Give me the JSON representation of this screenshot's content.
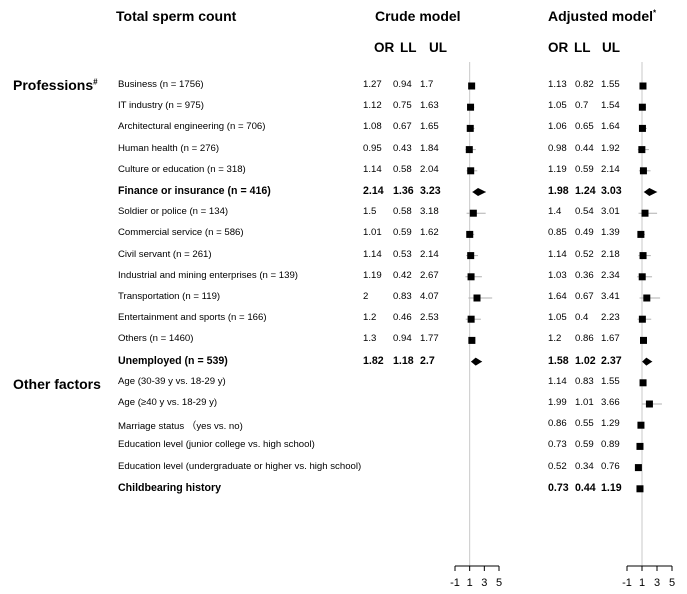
{
  "chart_data": {
    "type": "forest",
    "title": "Total sperm count",
    "columns": [
      "OR",
      "LL",
      "UL"
    ],
    "sections": [
      {
        "label": "Professions",
        "mark": "#"
      },
      {
        "label": "Other factors",
        "mark": ""
      }
    ],
    "panels": [
      {
        "title": "Crude model",
        "footnote_mark": "",
        "ticks": [
          "-1",
          "1",
          "3",
          "5"
        ],
        "xlim": [
          -1,
          5
        ],
        "ref": 1
      },
      {
        "title": "Adjusted model",
        "footnote_mark": "*",
        "ticks": [
          "-1",
          "1",
          "3",
          "5"
        ],
        "xlim": [
          -1,
          5
        ],
        "ref": 1
      }
    ],
    "rows": [
      {
        "label": "Business (n = 1756)",
        "bold": false,
        "crude": [
          "1.27",
          "0.94",
          "1.7"
        ],
        "adjusted": [
          "1.13",
          "0.82",
          "1.55"
        ]
      },
      {
        "label": "IT industry (n = 975)",
        "bold": false,
        "crude": [
          "1.12",
          "0.75",
          "1.63"
        ],
        "adjusted": [
          "1.05",
          "0.7",
          "1.54"
        ]
      },
      {
        "label": "Architectural engineering (n = 706)",
        "bold": false,
        "crude": [
          "1.08",
          "0.67",
          "1.65"
        ],
        "adjusted": [
          "1.06",
          "0.65",
          "1.64"
        ]
      },
      {
        "label": "Human health (n = 276)",
        "bold": false,
        "crude": [
          "0.95",
          "0.43",
          "1.84"
        ],
        "adjusted": [
          "0.98",
          "0.44",
          "1.92"
        ]
      },
      {
        "label": "Culture or education (n = 318)",
        "bold": false,
        "crude": [
          "1.14",
          "0.58",
          "2.04"
        ],
        "adjusted": [
          "1.19",
          "0.59",
          "2.14"
        ]
      },
      {
        "label": "Finance or insurance (n = 416)",
        "bold": true,
        "crude": [
          "2.14",
          "1.36",
          "3.23"
        ],
        "adjusted": [
          "1.98",
          "1.24",
          "3.03"
        ]
      },
      {
        "label": "Soldier or police (n = 134)",
        "bold": false,
        "crude": [
          "1.5",
          "0.58",
          "3.18"
        ],
        "adjusted": [
          "1.4",
          "0.54",
          "3.01"
        ]
      },
      {
        "label": "Commercial service (n = 586)",
        "bold": false,
        "crude": [
          "1.01",
          "0.59",
          "1.62"
        ],
        "adjusted": [
          "0.85",
          "0.49",
          "1.39"
        ]
      },
      {
        "label": "Civil servant (n = 261)",
        "bold": false,
        "crude": [
          "1.14",
          "0.53",
          "2.14"
        ],
        "adjusted": [
          "1.14",
          "0.52",
          "2.18"
        ]
      },
      {
        "label": "Industrial and mining enterprises (n = 139)",
        "bold": false,
        "crude": [
          "1.19",
          "0.42",
          "2.67"
        ],
        "adjusted": [
          "1.03",
          "0.36",
          "2.34"
        ]
      },
      {
        "label": "Transportation (n = 119)",
        "bold": false,
        "crude": [
          "2",
          "0.83",
          "4.07"
        ],
        "adjusted": [
          "1.64",
          "0.67",
          "3.41"
        ]
      },
      {
        "label": "Entertainment and sports (n = 166)",
        "bold": false,
        "crude": [
          "1.2",
          "0.46",
          "2.53"
        ],
        "adjusted": [
          "1.05",
          "0.4",
          "2.23"
        ]
      },
      {
        "label": "Others (n = 1460)",
        "bold": false,
        "crude": [
          "1.3",
          "0.94",
          "1.77"
        ],
        "adjusted": [
          "1.2",
          "0.86",
          "1.67"
        ]
      },
      {
        "label": "Unemployed (n = 539)",
        "bold": true,
        "crude": [
          "1.82",
          "1.18",
          "2.7"
        ],
        "adjusted": [
          "1.58",
          "1.02",
          "2.37"
        ]
      },
      {
        "label": "Age (30-39 y vs. 18-29 y)",
        "bold": false,
        "crude": null,
        "adjusted": [
          "1.14",
          "0.83",
          "1.55"
        ]
      },
      {
        "label": "Age (≥40 y vs. 18-29 y)",
        "bold": false,
        "crude": null,
        "adjusted": [
          "1.99",
          "1.01",
          "3.66"
        ]
      },
      {
        "label": "Marriage status （yes vs. no)",
        "bold": false,
        "crude": null,
        "adjusted": [
          "0.86",
          "0.55",
          "1.29"
        ]
      },
      {
        "label": "Education level (junior college vs. high school)",
        "bold": false,
        "crude": null,
        "adjusted": [
          "0.73",
          "0.59",
          "0.89"
        ]
      },
      {
        "label": "Education level (undergraduate or higher vs. high school)",
        "bold": false,
        "crude": null,
        "adjusted": [
          "0.52",
          "0.34",
          "0.76"
        ]
      },
      {
        "label": "Childbearing history",
        "bold": true,
        "crude": null,
        "adjusted": [
          "0.73",
          "0.44",
          "1.19"
        ]
      }
    ]
  }
}
